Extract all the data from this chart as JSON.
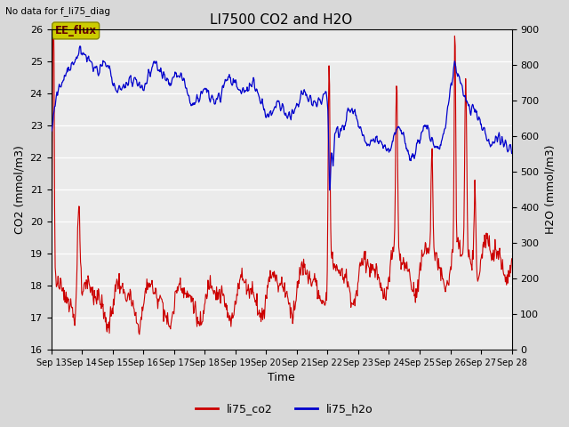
{
  "title": "LI7500 CO2 and H2O",
  "top_left_text": "No data for f_li75_diag",
  "annotation_text": "EE_flux",
  "xlabel": "Time",
  "ylabel_left": "CO2 (mmol/m3)",
  "ylabel_right": "H2O (mmol/m3)",
  "ylim_left": [
    16.0,
    26.0
  ],
  "ylim_right": [
    0,
    900
  ],
  "yticks_left": [
    16.0,
    17.0,
    18.0,
    19.0,
    20.0,
    21.0,
    22.0,
    23.0,
    24.0,
    25.0,
    26.0
  ],
  "yticks_right": [
    0,
    100,
    200,
    300,
    400,
    500,
    600,
    700,
    800,
    900
  ],
  "xtick_labels": [
    "Sep 13",
    "Sep 14",
    "Sep 15",
    "Sep 16",
    "Sep 17",
    "Sep 18",
    "Sep 19",
    "Sep 20",
    "Sep 21",
    "Sep 22",
    "Sep 23",
    "Sep 24",
    "Sep 25",
    "Sep 26",
    "Sep 27",
    "Sep 28"
  ],
  "co2_color": "#cc0000",
  "h2o_color": "#0000cc",
  "plot_bg_color": "#ebebeb",
  "fig_bg_color": "#d8d8d8",
  "legend_co2": "li75_co2",
  "legend_h2o": "li75_h2o",
  "annotation_bg": "#cccc00",
  "annotation_fg": "#660000"
}
